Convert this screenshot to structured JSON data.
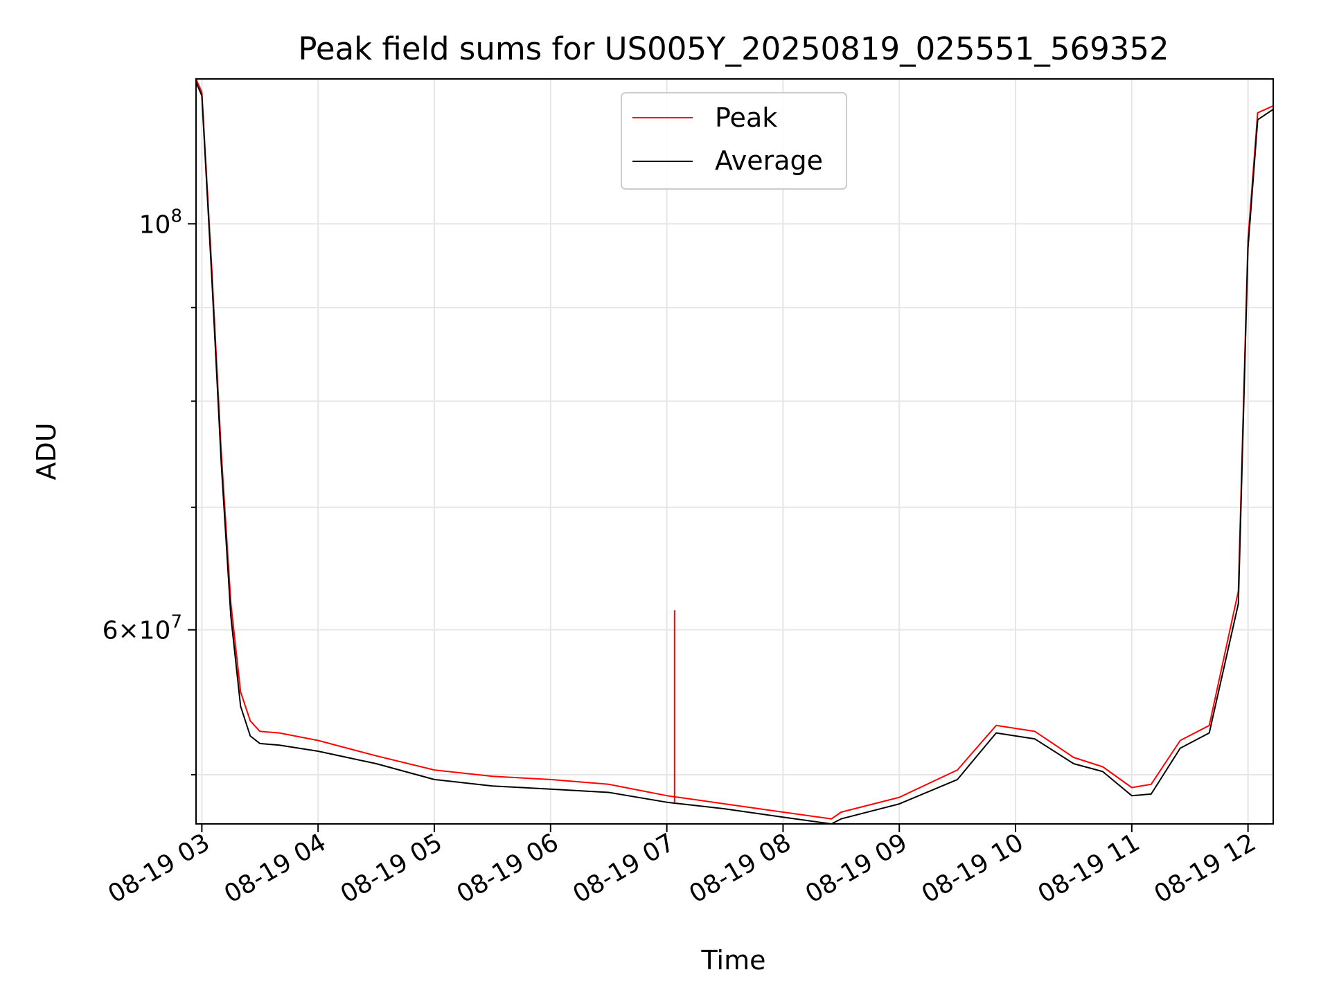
{
  "chart_data": {
    "type": "line",
    "title": "Peak field sums for US005Y_20250819_025551_569352",
    "xlabel": "Time",
    "ylabel": "ADU",
    "yscale": "log",
    "xlim": [
      "08-19 02:57",
      "08-19 12:13"
    ],
    "ylim": [
      47000000,
      120000000
    ],
    "x_ticks": [
      "08-19 03",
      "08-19 04",
      "08-19 05",
      "08-19 06",
      "08-19 07",
      "08-19 08",
      "08-19 09",
      "08-19 10",
      "08-19 11",
      "08-19 12"
    ],
    "y_tick_major": [
      {
        "value": 100000000,
        "label": "10^8"
      },
      {
        "value": 60000000,
        "label": "6×10^7"
      }
    ],
    "y_tick_minor_values": [
      50000000,
      70000000,
      80000000,
      90000000
    ],
    "grid": true,
    "legend": {
      "placement": "top-center"
    },
    "series": [
      {
        "name": "Peak",
        "color": "#ff0000",
        "x": [
          "08-19 02:57",
          "08-19 03:00",
          "08-19 03:05",
          "08-19 03:10",
          "08-19 03:15",
          "08-19 03:20",
          "08-19 03:25",
          "08-19 03:30",
          "08-19 03:40",
          "08-19 04:00",
          "08-19 04:30",
          "08-19 05:00",
          "08-19 05:30",
          "08-19 06:00",
          "08-19 06:30",
          "08-19 07:00",
          "08-19 07:30",
          "08-19 08:00",
          "08-19 08:25",
          "08-19 08:30",
          "08-19 09:00",
          "08-19 09:30",
          "08-19 09:50",
          "08-19 10:10",
          "08-19 10:30",
          "08-19 10:45",
          "08-19 11:00",
          "08-19 11:10",
          "08-19 11:25",
          "08-19 11:40",
          "08-19 11:55",
          "08-19 12:00",
          "08-19 12:05",
          "08-19 12:13"
        ],
        "values": [
          120000000,
          118000000,
          95000000,
          75000000,
          62000000,
          55500000,
          53500000,
          52800000,
          52700000,
          52200000,
          51200000,
          50300000,
          49900000,
          49700000,
          49400000,
          48700000,
          48200000,
          47700000,
          47300000,
          47700000,
          48600000,
          50300000,
          53200000,
          52800000,
          51100000,
          50500000,
          49200000,
          49400000,
          52200000,
          53200000,
          63000000,
          98000000,
          115000000,
          116000000
        ]
      },
      {
        "name": "Average",
        "color": "#000000",
        "x": [
          "08-19 02:57",
          "08-19 03:00",
          "08-19 03:05",
          "08-19 03:10",
          "08-19 03:15",
          "08-19 03:20",
          "08-19 03:25",
          "08-19 03:30",
          "08-19 03:40",
          "08-19 04:00",
          "08-19 04:30",
          "08-19 05:00",
          "08-19 05:30",
          "08-19 06:00",
          "08-19 06:30",
          "08-19 07:00",
          "08-19 07:30",
          "08-19 08:00",
          "08-19 08:25",
          "08-19 08:30",
          "08-19 09:00",
          "08-19 09:30",
          "08-19 09:50",
          "08-19 10:10",
          "08-19 10:30",
          "08-19 10:45",
          "08-19 11:00",
          "08-19 11:10",
          "08-19 11:25",
          "08-19 11:40",
          "08-19 11:55",
          "08-19 12:00",
          "08-19 12:05",
          "08-19 12:13"
        ],
        "values": [
          119500000,
          117500000,
          94000000,
          74000000,
          61000000,
          54500000,
          52500000,
          52000000,
          51900000,
          51500000,
          50700000,
          49700000,
          49300000,
          49100000,
          48900000,
          48300000,
          47900000,
          47400000,
          47000000,
          47300000,
          48200000,
          49700000,
          52700000,
          52300000,
          50700000,
          50200000,
          48700000,
          48800000,
          51700000,
          52700000,
          62000000,
          97000000,
          114000000,
          115500000
        ]
      }
    ],
    "annotations": [
      {
        "series": "Peak",
        "x": "08-19 07:04",
        "value": 61500000,
        "label": ""
      }
    ]
  }
}
